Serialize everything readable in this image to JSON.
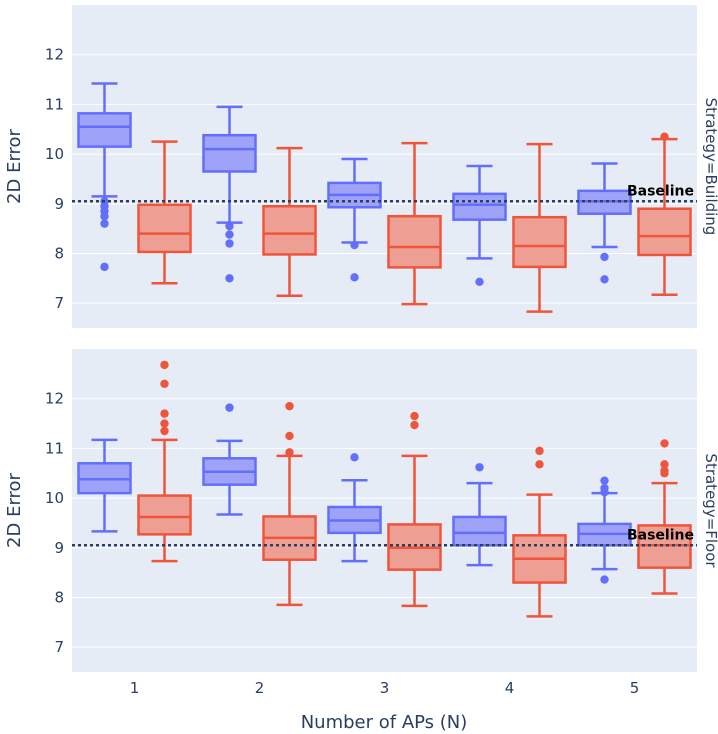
{
  "chart_data": {
    "type": "box",
    "xlabel": "Number of APs (N)",
    "ylabel": "2D Error",
    "categories": [
      "1",
      "2",
      "3",
      "4",
      "5"
    ],
    "ylim": [
      6.5,
      13.0
    ],
    "yticks": [
      7,
      8,
      9,
      10,
      11,
      12
    ],
    "baseline": {
      "value": 9.05,
      "label": "Baseline"
    },
    "colors": {
      "blue_line": "#636efa",
      "blue_fill": "#9ea3f7",
      "red_line": "#ef553b",
      "red_fill": "#ee9f94",
      "baseline": "#2a3f5f"
    },
    "panels": [
      {
        "strip_label": "Strategy=Building",
        "series": [
          {
            "name": "blue",
            "boxes": [
              {
                "q1": 10.15,
                "median": 10.55,
                "q3": 10.82,
                "lower": 9.15,
                "upper": 11.42,
                "outliers": [
                  9.05,
                  8.95,
                  8.85,
                  8.75,
                  8.6,
                  7.73
                ]
              },
              {
                "q1": 9.65,
                "median": 10.1,
                "q3": 10.38,
                "lower": 8.62,
                "upper": 10.95,
                "outliers": [
                  8.55,
                  8.38,
                  8.2,
                  7.5
                ]
              },
              {
                "q1": 8.93,
                "median": 9.18,
                "q3": 9.42,
                "lower": 8.22,
                "upper": 9.9,
                "outliers": [
                  8.17,
                  7.52
                ]
              },
              {
                "q1": 8.68,
                "median": 8.98,
                "q3": 9.2,
                "lower": 7.9,
                "upper": 9.76,
                "outliers": [
                  7.43
                ]
              },
              {
                "q1": 8.8,
                "median": 9.05,
                "q3": 9.26,
                "lower": 8.13,
                "upper": 9.81,
                "outliers": [
                  7.93,
                  7.48
                ]
              }
            ]
          },
          {
            "name": "red",
            "boxes": [
              {
                "q1": 8.03,
                "median": 8.4,
                "q3": 8.98,
                "lower": 7.4,
                "upper": 10.25,
                "outliers": []
              },
              {
                "q1": 7.98,
                "median": 8.4,
                "q3": 8.95,
                "lower": 7.15,
                "upper": 10.12,
                "outliers": []
              },
              {
                "q1": 7.72,
                "median": 8.13,
                "q3": 8.75,
                "lower": 6.98,
                "upper": 10.22,
                "outliers": []
              },
              {
                "q1": 7.73,
                "median": 8.15,
                "q3": 8.73,
                "lower": 6.83,
                "upper": 10.2,
                "outliers": []
              },
              {
                "q1": 7.97,
                "median": 8.35,
                "q3": 8.9,
                "lower": 7.17,
                "upper": 10.3,
                "outliers": [
                  10.35
                ]
              }
            ]
          }
        ]
      },
      {
        "strip_label": "Strategy=Floor",
        "series": [
          {
            "name": "blue",
            "boxes": [
              {
                "q1": 10.1,
                "median": 10.38,
                "q3": 10.7,
                "lower": 9.33,
                "upper": 11.17,
                "outliers": []
              },
              {
                "q1": 10.27,
                "median": 10.53,
                "q3": 10.8,
                "lower": 9.67,
                "upper": 11.15,
                "outliers": [
                  11.82
                ]
              },
              {
                "q1": 9.3,
                "median": 9.55,
                "q3": 9.82,
                "lower": 8.73,
                "upper": 10.36,
                "outliers": [
                  10.82
                ]
              },
              {
                "q1": 9.05,
                "median": 9.3,
                "q3": 9.62,
                "lower": 8.65,
                "upper": 10.3,
                "outliers": [
                  10.62
                ]
              },
              {
                "q1": 9.05,
                "median": 9.28,
                "q3": 9.48,
                "lower": 8.57,
                "upper": 10.1,
                "outliers": [
                  10.35,
                  10.2,
                  10.12,
                  8.36
                ]
              }
            ]
          },
          {
            "name": "red",
            "boxes": [
              {
                "q1": 9.27,
                "median": 9.62,
                "q3": 10.05,
                "lower": 8.73,
                "upper": 11.17,
                "outliers": [
                  11.35,
                  11.5,
                  11.7,
                  12.3,
                  12.68
                ]
              },
              {
                "q1": 8.76,
                "median": 9.2,
                "q3": 9.63,
                "lower": 7.85,
                "upper": 10.85,
                "outliers": [
                  10.92,
                  11.25,
                  11.85
                ]
              },
              {
                "q1": 8.56,
                "median": 9.0,
                "q3": 9.47,
                "lower": 7.83,
                "upper": 10.85,
                "outliers": [
                  11.47,
                  11.65
                ]
              },
              {
                "q1": 8.3,
                "median": 8.78,
                "q3": 9.25,
                "lower": 7.62,
                "upper": 10.07,
                "outliers": [
                  10.68,
                  10.95
                ]
              },
              {
                "q1": 8.6,
                "median": 9.05,
                "q3": 9.45,
                "lower": 8.08,
                "upper": 10.3,
                "outliers": [
                  10.5,
                  10.55,
                  10.68,
                  11.1
                ]
              }
            ]
          }
        ]
      }
    ]
  }
}
